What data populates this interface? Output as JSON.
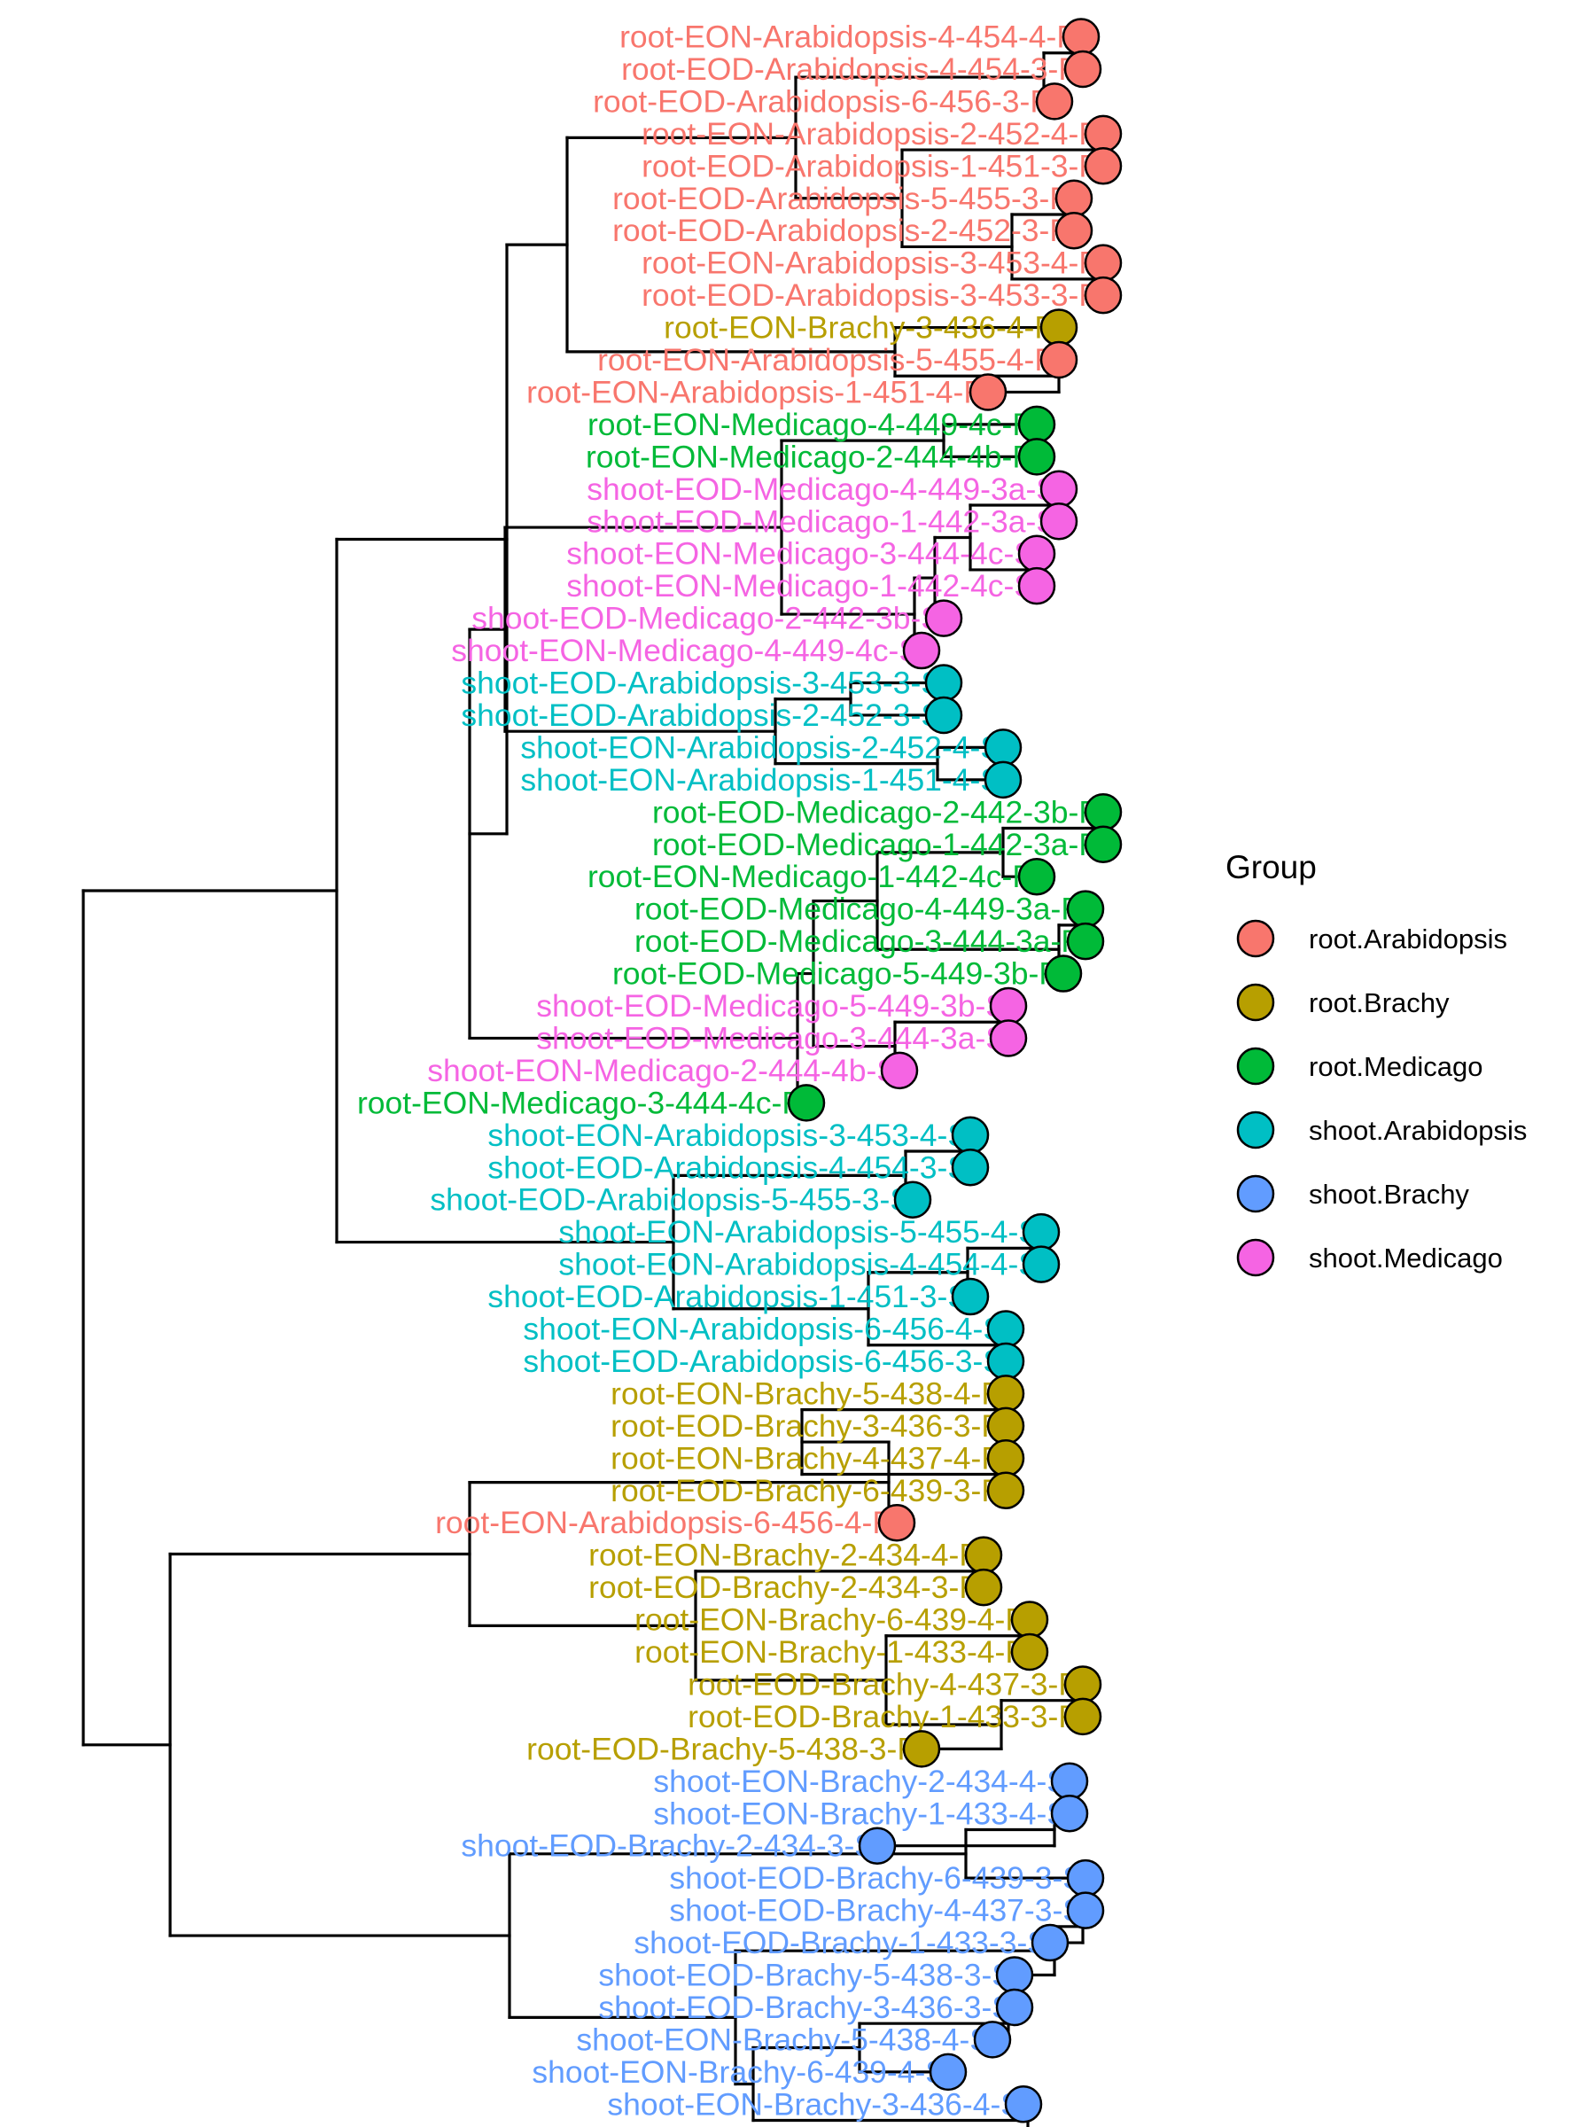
{
  "legend": {
    "title": "Group",
    "items": [
      {
        "name": "root.Arabidopsis",
        "color": "#F8766D"
      },
      {
        "name": "root.Brachy",
        "color": "#B79F00"
      },
      {
        "name": "root.Medicago",
        "color": "#00BA38"
      },
      {
        "name": "shoot.Arabidopsis",
        "color": "#00BFC4"
      },
      {
        "name": "shoot.Brachy",
        "color": "#619CFF"
      },
      {
        "name": "shoot.Medicago",
        "color": "#F564E3"
      }
    ]
  },
  "tips": [
    {
      "label": "root-EON-Arabidopsis-4-454-4-R",
      "group": "root.Arabidopsis"
    },
    {
      "label": "root-EOD-Arabidopsis-4-454-3-R",
      "group": "root.Arabidopsis"
    },
    {
      "label": "root-EOD-Arabidopsis-6-456-3-R",
      "group": "root.Arabidopsis"
    },
    {
      "label": "root-EON-Arabidopsis-2-452-4-R",
      "group": "root.Arabidopsis"
    },
    {
      "label": "root-EOD-Arabidopsis-1-451-3-R",
      "group": "root.Arabidopsis"
    },
    {
      "label": "root-EOD-Arabidopsis-5-455-3-R",
      "group": "root.Arabidopsis"
    },
    {
      "label": "root-EOD-Arabidopsis-2-452-3-R",
      "group": "root.Arabidopsis"
    },
    {
      "label": "root-EON-Arabidopsis-3-453-4-R",
      "group": "root.Arabidopsis"
    },
    {
      "label": "root-EOD-Arabidopsis-3-453-3-R",
      "group": "root.Arabidopsis"
    },
    {
      "label": "root-EON-Brachy-3-436-4-R",
      "group": "root.Brachy"
    },
    {
      "label": "root-EON-Arabidopsis-5-455-4-R",
      "group": "root.Arabidopsis"
    },
    {
      "label": "root-EON-Arabidopsis-1-451-4-R",
      "group": "root.Arabidopsis"
    },
    {
      "label": "root-EON-Medicago-4-449-4c-R",
      "group": "root.Medicago"
    },
    {
      "label": "root-EON-Medicago-2-444-4b-R",
      "group": "root.Medicago"
    },
    {
      "label": "shoot-EOD-Medicago-4-449-3a-S",
      "group": "shoot.Medicago"
    },
    {
      "label": "shoot-EOD-Medicago-1-442-3a-S",
      "group": "shoot.Medicago"
    },
    {
      "label": "shoot-EON-Medicago-3-444-4c-S",
      "group": "shoot.Medicago"
    },
    {
      "label": "shoot-EON-Medicago-1-442-4c-S",
      "group": "shoot.Medicago"
    },
    {
      "label": "shoot-EOD-Medicago-2-442-3b-S",
      "group": "shoot.Medicago"
    },
    {
      "label": "shoot-EON-Medicago-4-449-4c-S",
      "group": "shoot.Medicago"
    },
    {
      "label": "shoot-EOD-Arabidopsis-3-453-3-S",
      "group": "shoot.Arabidopsis"
    },
    {
      "label": "shoot-EOD-Arabidopsis-2-452-3-S",
      "group": "shoot.Arabidopsis"
    },
    {
      "label": "shoot-EON-Arabidopsis-2-452-4-S",
      "group": "shoot.Arabidopsis"
    },
    {
      "label": "shoot-EON-Arabidopsis-1-451-4-S",
      "group": "shoot.Arabidopsis"
    },
    {
      "label": "root-EOD-Medicago-2-442-3b-R",
      "group": "root.Medicago"
    },
    {
      "label": "root-EOD-Medicago-1-442-3a-R",
      "group": "root.Medicago"
    },
    {
      "label": "root-EON-Medicago-1-442-4c-R",
      "group": "root.Medicago"
    },
    {
      "label": "root-EOD-Medicago-4-449-3a-R",
      "group": "root.Medicago"
    },
    {
      "label": "root-EOD-Medicago-3-444-3a-R",
      "group": "root.Medicago"
    },
    {
      "label": "root-EOD-Medicago-5-449-3b-R",
      "group": "root.Medicago"
    },
    {
      "label": "shoot-EOD-Medicago-5-449-3b-S",
      "group": "shoot.Medicago"
    },
    {
      "label": "shoot-EOD-Medicago-3-444-3a-S",
      "group": "shoot.Medicago"
    },
    {
      "label": "shoot-EON-Medicago-2-444-4b-S",
      "group": "shoot.Medicago"
    },
    {
      "label": "root-EON-Medicago-3-444-4c-R",
      "group": "root.Medicago"
    },
    {
      "label": "shoot-EON-Arabidopsis-3-453-4-S",
      "group": "shoot.Arabidopsis"
    },
    {
      "label": "shoot-EOD-Arabidopsis-4-454-3-S",
      "group": "shoot.Arabidopsis"
    },
    {
      "label": "shoot-EOD-Arabidopsis-5-455-3-S",
      "group": "shoot.Arabidopsis"
    },
    {
      "label": "shoot-EON-Arabidopsis-5-455-4-S",
      "group": "shoot.Arabidopsis"
    },
    {
      "label": "shoot-EON-Arabidopsis-4-454-4-S",
      "group": "shoot.Arabidopsis"
    },
    {
      "label": "shoot-EOD-Arabidopsis-1-451-3-S",
      "group": "shoot.Arabidopsis"
    },
    {
      "label": "shoot-EON-Arabidopsis-6-456-4-S",
      "group": "shoot.Arabidopsis"
    },
    {
      "label": "shoot-EOD-Arabidopsis-6-456-3-S",
      "group": "shoot.Arabidopsis"
    },
    {
      "label": "root-EON-Brachy-5-438-4-R",
      "group": "root.Brachy"
    },
    {
      "label": "root-EOD-Brachy-3-436-3-R",
      "group": "root.Brachy"
    },
    {
      "label": "root-EON-Brachy-4-437-4-R",
      "group": "root.Brachy"
    },
    {
      "label": "root-EOD-Brachy-6-439-3-R",
      "group": "root.Brachy"
    },
    {
      "label": "root-EON-Arabidopsis-6-456-4-R",
      "group": "root.Arabidopsis"
    },
    {
      "label": "root-EON-Brachy-2-434-4-R",
      "group": "root.Brachy"
    },
    {
      "label": "root-EOD-Brachy-2-434-3-R",
      "group": "root.Brachy"
    },
    {
      "label": "root-EON-Brachy-6-439-4-R",
      "group": "root.Brachy"
    },
    {
      "label": "root-EON-Brachy-1-433-4-R",
      "group": "root.Brachy"
    },
    {
      "label": "root-EOD-Brachy-4-437-3-R",
      "group": "root.Brachy"
    },
    {
      "label": "root-EOD-Brachy-1-433-3-R",
      "group": "root.Brachy"
    },
    {
      "label": "root-EOD-Brachy-5-438-3-R",
      "group": "root.Brachy"
    },
    {
      "label": "shoot-EON-Brachy-2-434-4-S",
      "group": "shoot.Brachy"
    },
    {
      "label": "shoot-EON-Brachy-1-433-4-S",
      "group": "shoot.Brachy"
    },
    {
      "label": "shoot-EOD-Brachy-2-434-3-S",
      "group": "shoot.Brachy"
    },
    {
      "label": "shoot-EOD-Brachy-6-439-3-S",
      "group": "shoot.Brachy"
    },
    {
      "label": "shoot-EOD-Brachy-4-437-3-S",
      "group": "shoot.Brachy"
    },
    {
      "label": "shoot-EOD-Brachy-1-433-3-S",
      "group": "shoot.Brachy"
    },
    {
      "label": "shoot-EOD-Brachy-5-438-3-S",
      "group": "shoot.Brachy"
    },
    {
      "label": "shoot-EOD-Brachy-3-436-3-S",
      "group": "shoot.Brachy"
    },
    {
      "label": "shoot-EON-Brachy-5-438-4-S",
      "group": "shoot.Brachy"
    },
    {
      "label": "shoot-EON-Brachy-6-439-4-S",
      "group": "shoot.Brachy"
    },
    {
      "label": "shoot-EON-Brachy-3-436-4-S",
      "group": "shoot.Brachy"
    }
  ]
}
